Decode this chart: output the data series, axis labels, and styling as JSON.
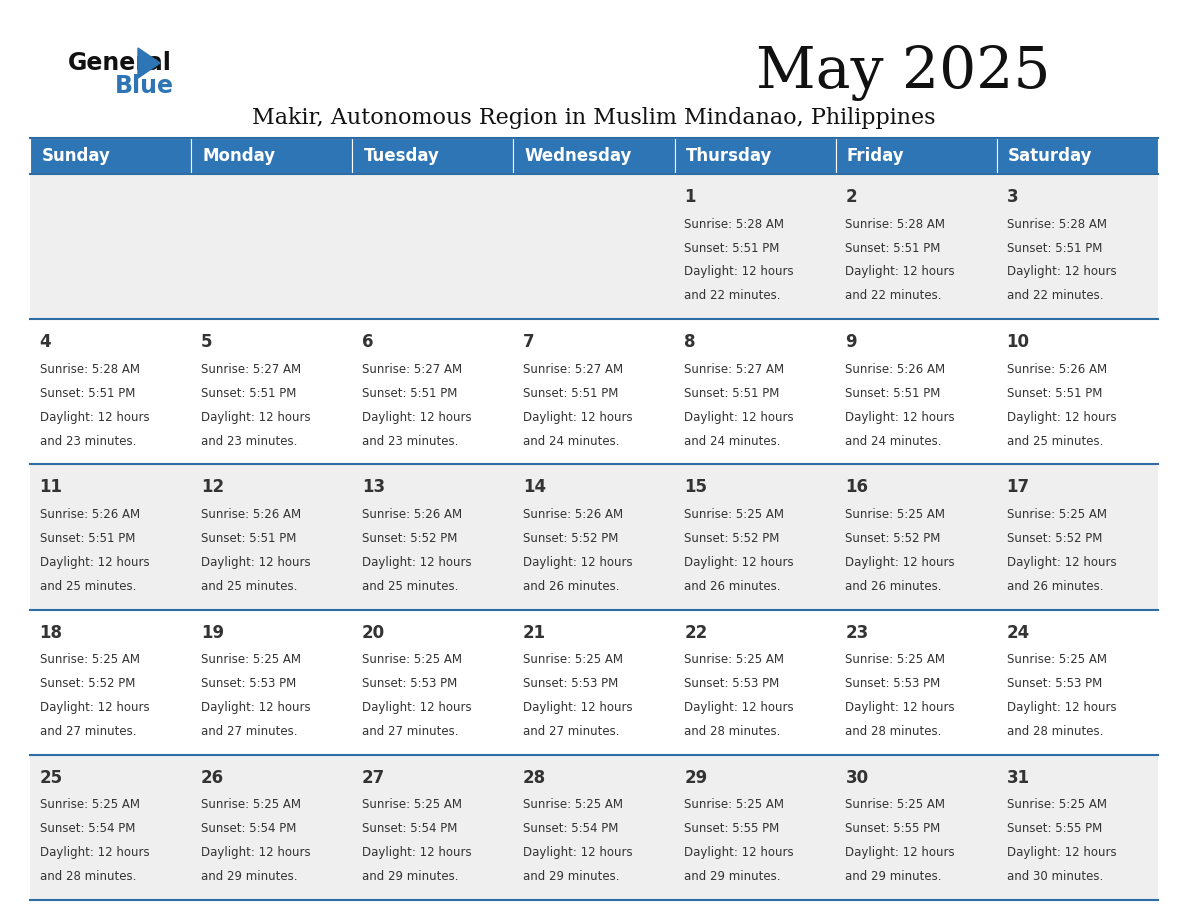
{
  "title": "May 2025",
  "subtitle": "Makir, Autonomous Region in Muslim Mindanao, Philippines",
  "header_bg_color": "#2E75B6",
  "header_text_color": "#FFFFFF",
  "row_bg_even": "#EFEFEF",
  "row_bg_odd": "#FFFFFF",
  "border_color": "#2E6DA4",
  "text_color": "#333333",
  "days_of_week": [
    "Sunday",
    "Monday",
    "Tuesday",
    "Wednesday",
    "Thursday",
    "Friday",
    "Saturday"
  ],
  "weeks": [
    [
      {
        "day": "",
        "sunrise": "",
        "sunset": "",
        "daylight_h": "",
        "daylight_m": ""
      },
      {
        "day": "",
        "sunrise": "",
        "sunset": "",
        "daylight_h": "",
        "daylight_m": ""
      },
      {
        "day": "",
        "sunrise": "",
        "sunset": "",
        "daylight_h": "",
        "daylight_m": ""
      },
      {
        "day": "",
        "sunrise": "",
        "sunset": "",
        "daylight_h": "",
        "daylight_m": ""
      },
      {
        "day": "1",
        "sunrise": "5:28 AM",
        "sunset": "5:51 PM",
        "daylight_h": "12 hours",
        "daylight_m": "22 minutes"
      },
      {
        "day": "2",
        "sunrise": "5:28 AM",
        "sunset": "5:51 PM",
        "daylight_h": "12 hours",
        "daylight_m": "22 minutes"
      },
      {
        "day": "3",
        "sunrise": "5:28 AM",
        "sunset": "5:51 PM",
        "daylight_h": "12 hours",
        "daylight_m": "22 minutes"
      }
    ],
    [
      {
        "day": "4",
        "sunrise": "5:28 AM",
        "sunset": "5:51 PM",
        "daylight_h": "12 hours",
        "daylight_m": "23 minutes"
      },
      {
        "day": "5",
        "sunrise": "5:27 AM",
        "sunset": "5:51 PM",
        "daylight_h": "12 hours",
        "daylight_m": "23 minutes"
      },
      {
        "day": "6",
        "sunrise": "5:27 AM",
        "sunset": "5:51 PM",
        "daylight_h": "12 hours",
        "daylight_m": "23 minutes"
      },
      {
        "day": "7",
        "sunrise": "5:27 AM",
        "sunset": "5:51 PM",
        "daylight_h": "12 hours",
        "daylight_m": "24 minutes"
      },
      {
        "day": "8",
        "sunrise": "5:27 AM",
        "sunset": "5:51 PM",
        "daylight_h": "12 hours",
        "daylight_m": "24 minutes"
      },
      {
        "day": "9",
        "sunrise": "5:26 AM",
        "sunset": "5:51 PM",
        "daylight_h": "12 hours",
        "daylight_m": "24 minutes"
      },
      {
        "day": "10",
        "sunrise": "5:26 AM",
        "sunset": "5:51 PM",
        "daylight_h": "12 hours",
        "daylight_m": "25 minutes"
      }
    ],
    [
      {
        "day": "11",
        "sunrise": "5:26 AM",
        "sunset": "5:51 PM",
        "daylight_h": "12 hours",
        "daylight_m": "25 minutes"
      },
      {
        "day": "12",
        "sunrise": "5:26 AM",
        "sunset": "5:51 PM",
        "daylight_h": "12 hours",
        "daylight_m": "25 minutes"
      },
      {
        "day": "13",
        "sunrise": "5:26 AM",
        "sunset": "5:52 PM",
        "daylight_h": "12 hours",
        "daylight_m": "25 minutes"
      },
      {
        "day": "14",
        "sunrise": "5:26 AM",
        "sunset": "5:52 PM",
        "daylight_h": "12 hours",
        "daylight_m": "26 minutes"
      },
      {
        "day": "15",
        "sunrise": "5:25 AM",
        "sunset": "5:52 PM",
        "daylight_h": "12 hours",
        "daylight_m": "26 minutes"
      },
      {
        "day": "16",
        "sunrise": "5:25 AM",
        "sunset": "5:52 PM",
        "daylight_h": "12 hours",
        "daylight_m": "26 minutes"
      },
      {
        "day": "17",
        "sunrise": "5:25 AM",
        "sunset": "5:52 PM",
        "daylight_h": "12 hours",
        "daylight_m": "26 minutes"
      }
    ],
    [
      {
        "day": "18",
        "sunrise": "5:25 AM",
        "sunset": "5:52 PM",
        "daylight_h": "12 hours",
        "daylight_m": "27 minutes"
      },
      {
        "day": "19",
        "sunrise": "5:25 AM",
        "sunset": "5:53 PM",
        "daylight_h": "12 hours",
        "daylight_m": "27 minutes"
      },
      {
        "day": "20",
        "sunrise": "5:25 AM",
        "sunset": "5:53 PM",
        "daylight_h": "12 hours",
        "daylight_m": "27 minutes"
      },
      {
        "day": "21",
        "sunrise": "5:25 AM",
        "sunset": "5:53 PM",
        "daylight_h": "12 hours",
        "daylight_m": "27 minutes"
      },
      {
        "day": "22",
        "sunrise": "5:25 AM",
        "sunset": "5:53 PM",
        "daylight_h": "12 hours",
        "daylight_m": "28 minutes"
      },
      {
        "day": "23",
        "sunrise": "5:25 AM",
        "sunset": "5:53 PM",
        "daylight_h": "12 hours",
        "daylight_m": "28 minutes"
      },
      {
        "day": "24",
        "sunrise": "5:25 AM",
        "sunset": "5:53 PM",
        "daylight_h": "12 hours",
        "daylight_m": "28 minutes"
      }
    ],
    [
      {
        "day": "25",
        "sunrise": "5:25 AM",
        "sunset": "5:54 PM",
        "daylight_h": "12 hours",
        "daylight_m": "28 minutes"
      },
      {
        "day": "26",
        "sunrise": "5:25 AM",
        "sunset": "5:54 PM",
        "daylight_h": "12 hours",
        "daylight_m": "29 minutes"
      },
      {
        "day": "27",
        "sunrise": "5:25 AM",
        "sunset": "5:54 PM",
        "daylight_h": "12 hours",
        "daylight_m": "29 minutes"
      },
      {
        "day": "28",
        "sunrise": "5:25 AM",
        "sunset": "5:54 PM",
        "daylight_h": "12 hours",
        "daylight_m": "29 minutes"
      },
      {
        "day": "29",
        "sunrise": "5:25 AM",
        "sunset": "5:55 PM",
        "daylight_h": "12 hours",
        "daylight_m": "29 minutes"
      },
      {
        "day": "30",
        "sunrise": "5:25 AM",
        "sunset": "5:55 PM",
        "daylight_h": "12 hours",
        "daylight_m": "29 minutes"
      },
      {
        "day": "31",
        "sunrise": "5:25 AM",
        "sunset": "5:55 PM",
        "daylight_h": "12 hours",
        "daylight_m": "30 minutes"
      }
    ]
  ]
}
